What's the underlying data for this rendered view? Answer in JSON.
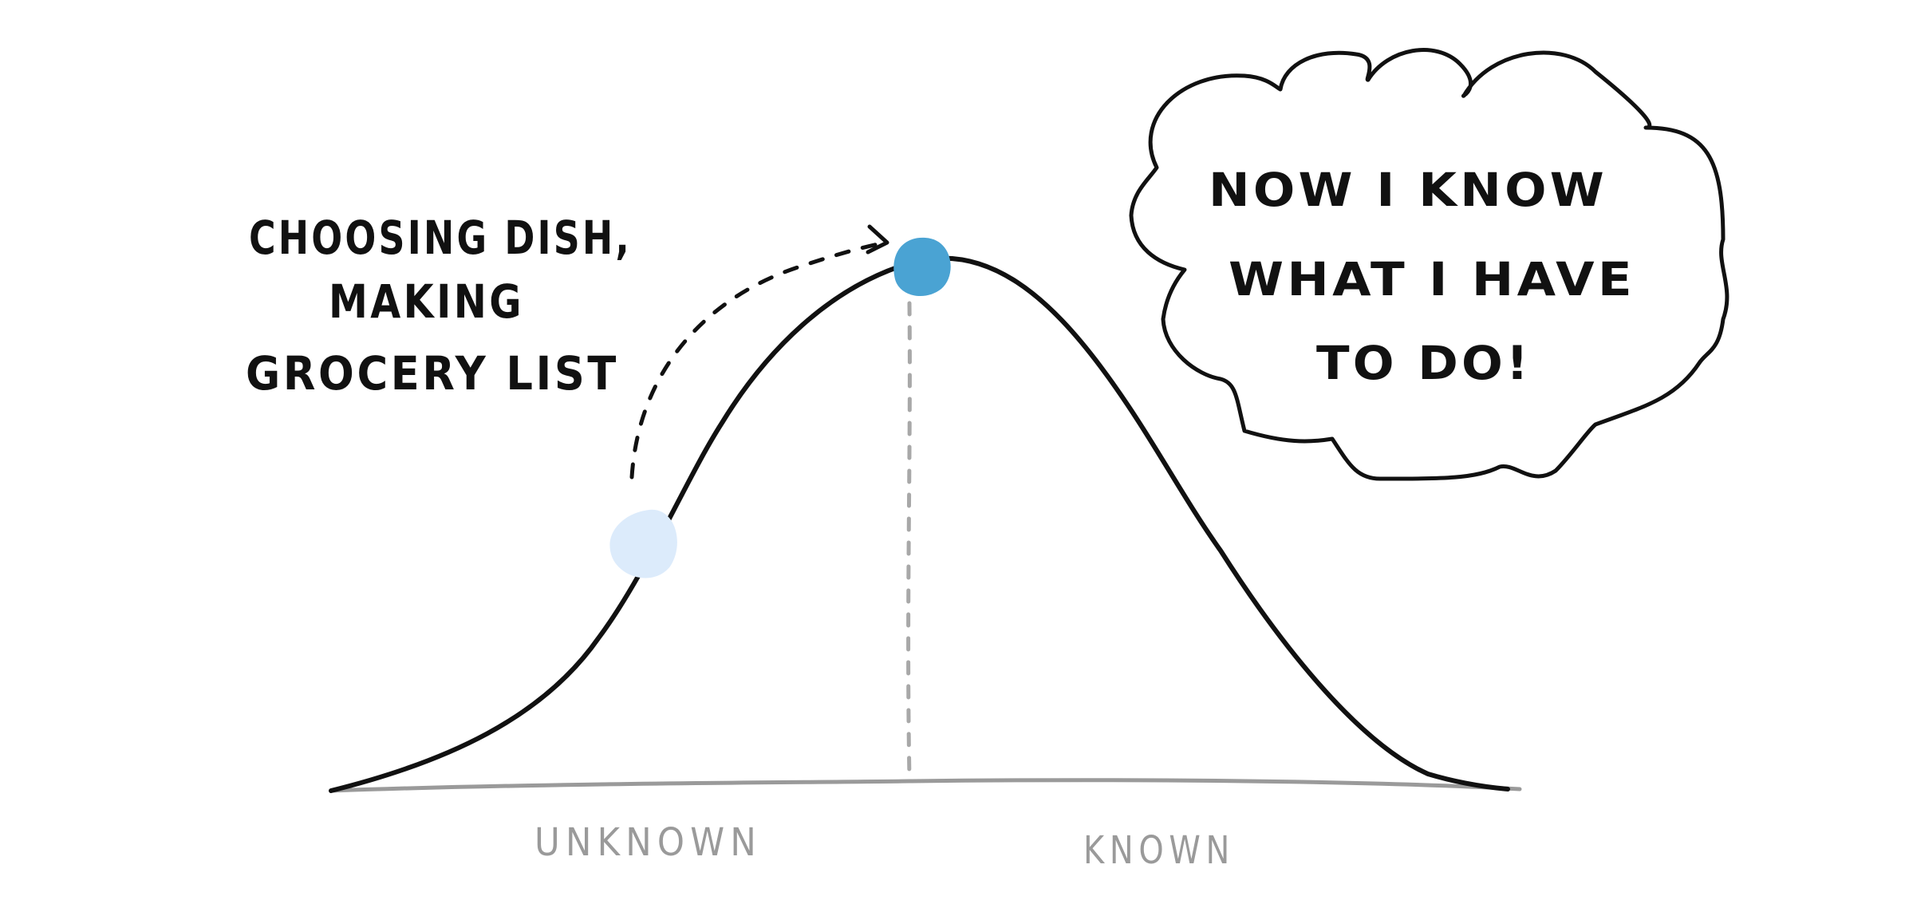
{
  "annotation": {
    "lines": [
      "CHOOSING DISH,",
      "MAKING",
      "GROCERY LIST"
    ]
  },
  "thought_bubble": {
    "lines": [
      "NOW I KNOW",
      "WHAT I HAVE",
      "TO DO!"
    ]
  },
  "axis": {
    "left_label": "UNKNOWN",
    "right_label": "KNOWN"
  },
  "colors": {
    "curve": "#111111",
    "axis": "#9a9a9a",
    "peak_dot": "#4aa3d3",
    "start_dot": "#dcebfb"
  }
}
